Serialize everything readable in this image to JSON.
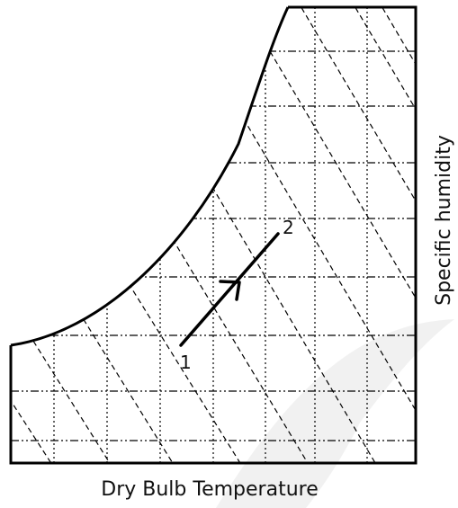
{
  "diagram": {
    "xlabel": "Dry Bulb Temperature",
    "ylabel": "Specific humidity",
    "points": [
      {
        "label": "1"
      },
      {
        "label": "2"
      }
    ],
    "colors": {
      "line": "#000000",
      "watermark": "#eeeeee"
    }
  }
}
